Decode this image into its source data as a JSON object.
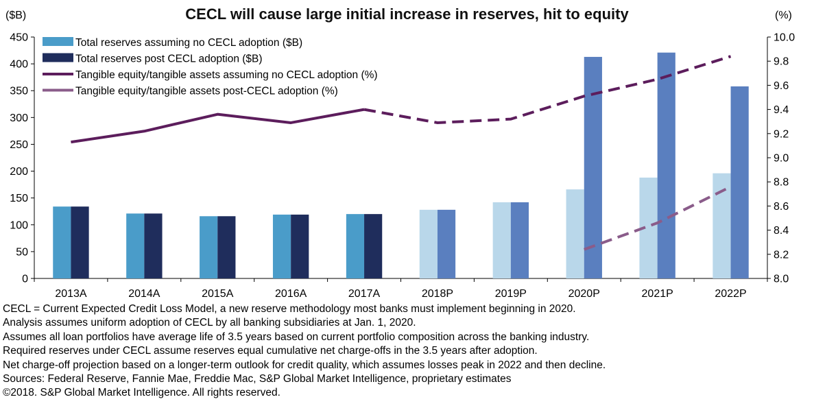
{
  "title": "CECL will cause large initial increase in reserves, hit to equity",
  "left_axis_unit": "($B)",
  "right_axis_unit": "(%)",
  "colors": {
    "reserves_no_cecl_actual": "#4a9cc9",
    "reserves_no_cecl_projected": "#b9d7ea",
    "reserves_post_cecl_actual": "#1f2d5c",
    "reserves_post_cecl_projected": "#5a7fbf",
    "equity_no_cecl": "#5c1d5c",
    "equity_post_cecl": "#8a5c8a"
  },
  "chart_data": {
    "type": "bar",
    "title": "CECL will cause large initial increase in reserves, hit to equity",
    "categories": [
      "2013A",
      "2014A",
      "2015A",
      "2016A",
      "2017A",
      "2018P",
      "2019P",
      "2020P",
      "2021P",
      "2022P"
    ],
    "left_axis": {
      "label": "($B)",
      "ylim": [
        0,
        450
      ],
      "ticks": [
        "0",
        "50",
        "100",
        "150",
        "200",
        "250",
        "300",
        "350",
        "400",
        "450"
      ]
    },
    "right_axis": {
      "label": "(%)",
      "ylim": [
        8.0,
        10.0
      ],
      "ticks": [
        "8.0",
        "8.2",
        "8.4",
        "8.6",
        "8.8",
        "9.0",
        "9.2",
        "9.4",
        "9.6",
        "9.8",
        "10.0"
      ]
    },
    "series": [
      {
        "name": "Total reserves assuming no CECL adoption ($B)",
        "type": "bar",
        "axis": "left",
        "values": [
          134,
          121,
          116,
          119,
          120,
          128,
          142,
          166,
          188,
          196
        ]
      },
      {
        "name": "Total reserves post CECL adoption ($B)",
        "type": "bar",
        "axis": "left",
        "values": [
          134,
          121,
          116,
          119,
          120,
          128,
          142,
          413,
          421,
          358
        ]
      },
      {
        "name": "Tangible equity/tangible assets assuming no CECL adoption (%)",
        "type": "line",
        "axis": "right",
        "values": [
          9.13,
          9.22,
          9.36,
          9.29,
          9.4,
          9.29,
          9.32,
          9.51,
          9.65,
          9.84
        ],
        "dashed_from_index": 4
      },
      {
        "name": "Tangible equity/tangible assets post-CECL adoption (%)",
        "type": "line",
        "axis": "right",
        "values": [
          null,
          null,
          null,
          null,
          null,
          null,
          null,
          8.24,
          8.46,
          8.76
        ],
        "dashed_from_index": 7
      }
    ],
    "projected_from_index": 5,
    "legend_position": "top-left",
    "grid": false
  },
  "notes": [
    "CECL = Current Expected Credit Loss Model, a new reserve methodology most banks must implement beginning in 2020.",
    "Analysis assumes uniform adoption of CECL by all banking subsidiaries at Jan. 1, 2020.",
    "Assumes all loan portfolios have average life of 3.5 years based on current portfolio composition across the banking industry.",
    "Required reserves under CECL assume reserves equal cumulative net charge-offs in the 3.5 years after adoption.",
    "Net charge-off projection based on a longer-term outlook for credit quality, which assumes losses peak in 2022 and then decline.",
    "Sources: Federal Reserve, Fannie Mae, Freddie Mac, S&P Global Market Intelligence, proprietary estimates",
    "©2018. S&P Global Market Intelligence. All rights reserved."
  ]
}
